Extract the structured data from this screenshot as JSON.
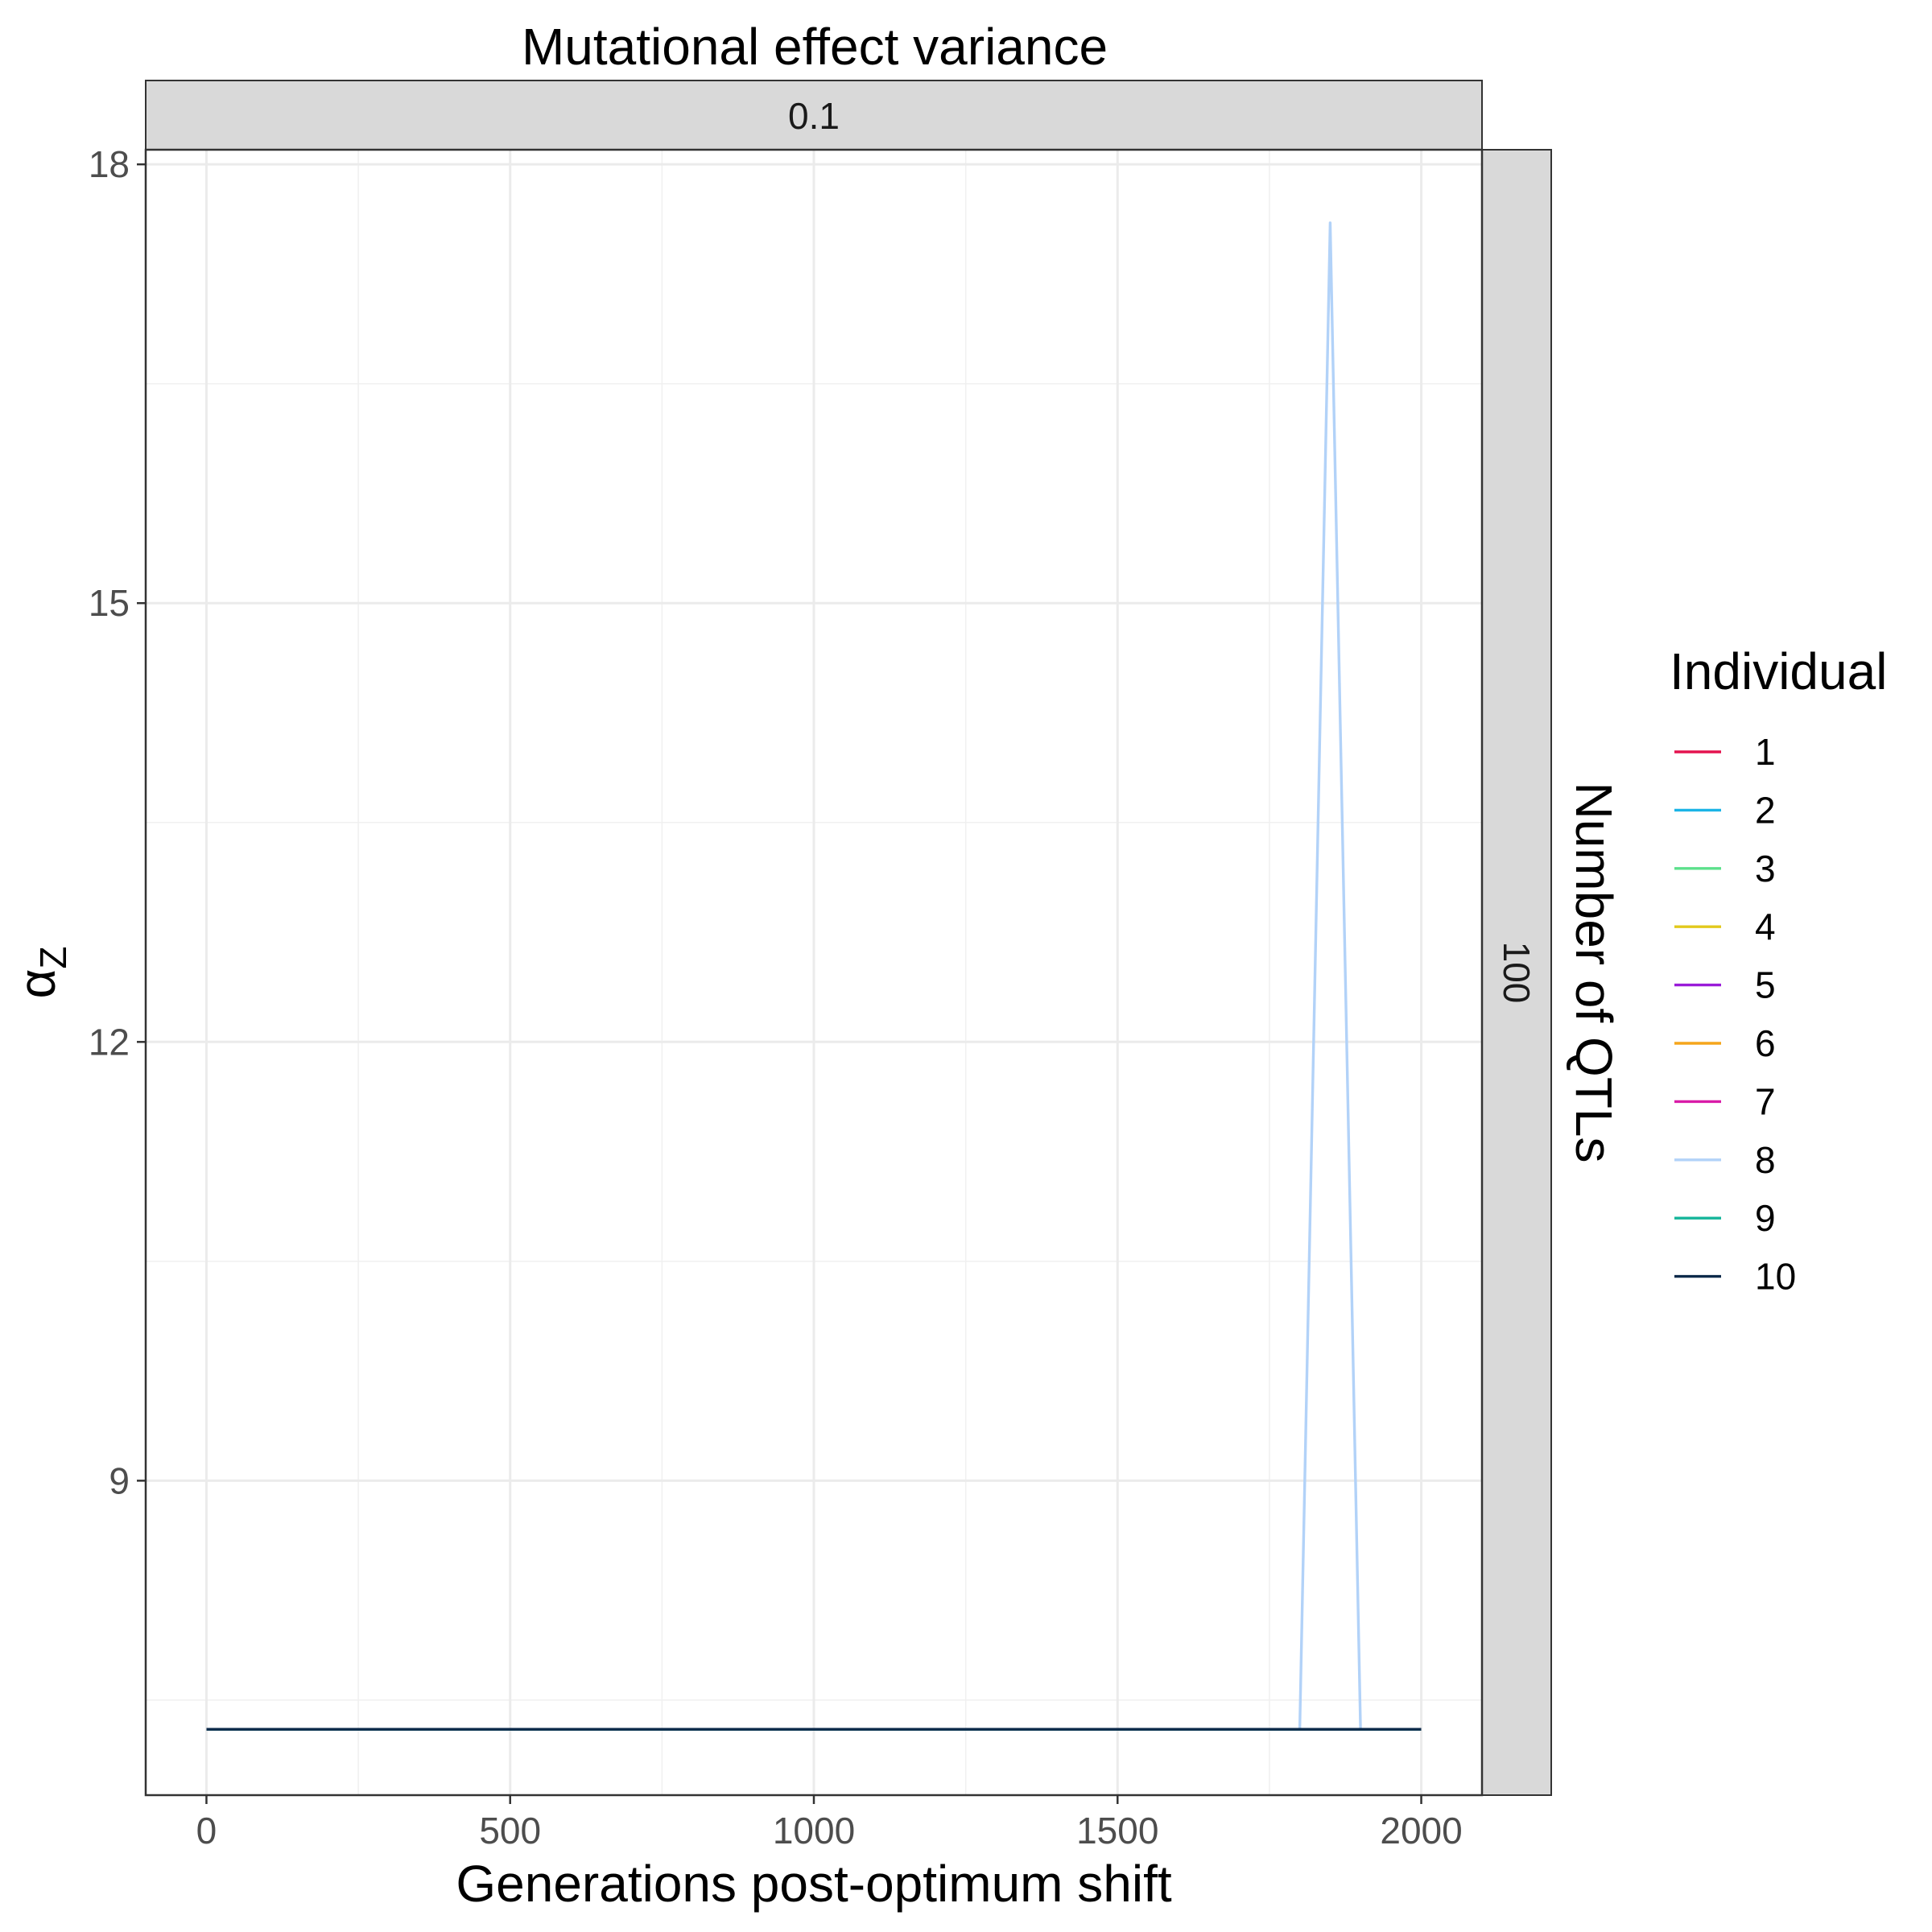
{
  "chart_data": {
    "type": "line",
    "title": "Mutational effect variance",
    "facet_col_label": "0.1",
    "facet_row_title": "Number of QTLs",
    "facet_row_label": "100",
    "xlabel": "Generations post-optimum shift",
    "ylabel_main": "α",
    "ylabel_sub": "Z",
    "xlim": [
      -100,
      2100
    ],
    "ylim": [
      6.85,
      18.1
    ],
    "x_ticks": [
      0,
      500,
      1000,
      1500,
      2000
    ],
    "y_ticks": [
      9,
      12,
      15,
      18
    ],
    "grid": true,
    "legend": {
      "title": "Individual",
      "position": "right",
      "entries": [
        "1",
        "2",
        "3",
        "4",
        "5",
        "6",
        "7",
        "8",
        "9",
        "10"
      ]
    },
    "series": [
      {
        "name": "1",
        "color": "#E4134F",
        "x": [
          0,
          2000
        ],
        "y": [
          7.3,
          7.3
        ]
      },
      {
        "name": "2",
        "color": "#1CB4E6",
        "x": [
          0,
          2000
        ],
        "y": [
          7.3,
          7.3
        ]
      },
      {
        "name": "3",
        "color": "#5CE08B",
        "x": [
          0,
          2000
        ],
        "y": [
          7.3,
          7.3
        ]
      },
      {
        "name": "4",
        "color": "#E2C91C",
        "x": [
          0,
          2000
        ],
        "y": [
          7.3,
          7.3
        ]
      },
      {
        "name": "5",
        "color": "#9A1CD9",
        "x": [
          0,
          2000
        ],
        "y": [
          7.3,
          7.3
        ]
      },
      {
        "name": "6",
        "color": "#F5A51C",
        "x": [
          0,
          2000
        ],
        "y": [
          7.3,
          7.3
        ]
      },
      {
        "name": "7",
        "color": "#D91CA8",
        "x": [
          0,
          2000
        ],
        "y": [
          7.3,
          7.3
        ]
      },
      {
        "name": "8",
        "color": "#B2D2F8",
        "x": [
          0,
          1800,
          1850,
          1900,
          2000
        ],
        "y": [
          7.3,
          7.3,
          17.6,
          7.3,
          7.3
        ]
      },
      {
        "name": "9",
        "color": "#14B59A",
        "x": [
          0,
          2000
        ],
        "y": [
          7.3,
          7.3
        ]
      },
      {
        "name": "10",
        "color": "#0D2A4A",
        "x": [
          0,
          2000
        ],
        "y": [
          7.3,
          7.3
        ]
      }
    ]
  }
}
